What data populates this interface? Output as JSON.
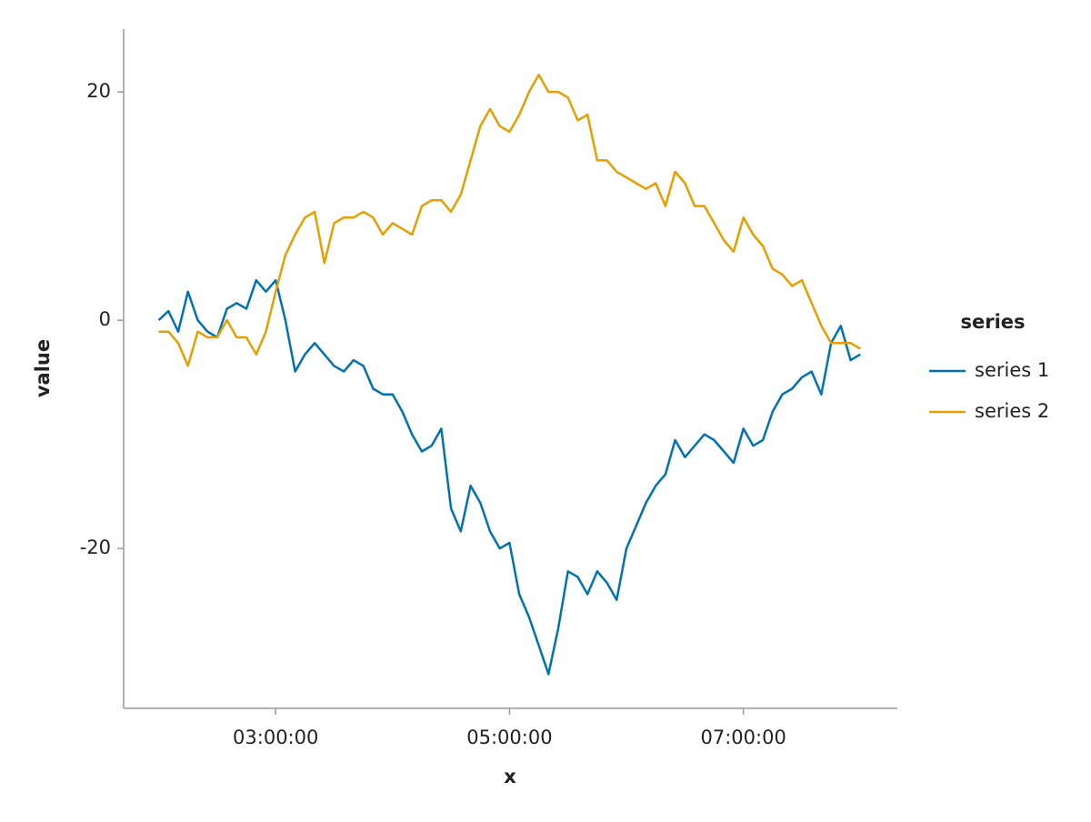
{
  "chart_data": {
    "type": "line",
    "xlabel": "x",
    "ylabel": "value",
    "x": [
      "02:00:00",
      "02:05:00",
      "02:10:00",
      "02:15:00",
      "02:20:00",
      "02:25:00",
      "02:30:00",
      "02:35:00",
      "02:40:00",
      "02:45:00",
      "02:50:00",
      "02:55:00",
      "03:00:00",
      "03:05:00",
      "03:10:00",
      "03:15:00",
      "03:20:00",
      "03:25:00",
      "03:30:00",
      "03:35:00",
      "03:40:00",
      "03:45:00",
      "03:50:00",
      "03:55:00",
      "04:00:00",
      "04:05:00",
      "04:10:00",
      "04:15:00",
      "04:20:00",
      "04:25:00",
      "04:30:00",
      "04:35:00",
      "04:40:00",
      "04:45:00",
      "04:50:00",
      "04:55:00",
      "05:00:00",
      "05:05:00",
      "05:10:00",
      "05:15:00",
      "05:20:00",
      "05:25:00",
      "05:30:00",
      "05:35:00",
      "05:40:00",
      "05:45:00",
      "05:50:00",
      "05:55:00",
      "06:00:00",
      "06:05:00",
      "06:10:00",
      "06:15:00",
      "06:20:00",
      "06:25:00",
      "06:30:00",
      "06:35:00",
      "06:40:00",
      "06:45:00",
      "06:50:00",
      "06:55:00",
      "07:00:00",
      "07:05:00",
      "07:10:00",
      "07:15:00",
      "07:20:00",
      "07:25:00",
      "07:30:00",
      "07:35:00",
      "07:40:00",
      "07:45:00",
      "07:50:00",
      "07:55:00",
      "08:00:00"
    ],
    "series": [
      {
        "name": "series 1",
        "color": "#0072b2",
        "values": [
          0,
          0.8,
          -1,
          2.5,
          0,
          -1,
          -1.5,
          1,
          1.5,
          1,
          3.5,
          2.5,
          3.5,
          0,
          -4.5,
          -3,
          -2,
          -3,
          -4,
          -4.5,
          -3.5,
          -4,
          -6,
          -6.5,
          -6.5,
          -8,
          -10,
          -11.5,
          -11,
          -9.5,
          -16.5,
          -18.5,
          -14.5,
          -16,
          -18.5,
          -20,
          -19.5,
          -24,
          -26,
          -28.5,
          -31,
          -27,
          -22,
          -22.5,
          -24,
          -22,
          -23,
          -24.5,
          -20,
          -18,
          -16,
          -14.5,
          -13.5,
          -10.5,
          -12,
          -11,
          -10,
          -10.5,
          -11.5,
          -12.5,
          -9.5,
          -11,
          -10.5,
          -8,
          -6.5,
          -6,
          -5,
          -4.5,
          -6.5,
          -2,
          -0.5,
          -3.5,
          -3
        ]
      },
      {
        "name": "series 2",
        "color": "#e69f00",
        "values": [
          -1,
          -1,
          -2,
          -4,
          -1,
          -1.5,
          -1.5,
          0,
          -1.5,
          -1.5,
          -3,
          -1,
          2.5,
          5.7,
          7.5,
          9,
          9.5,
          5,
          8.5,
          9,
          9,
          9.5,
          9,
          7.5,
          8.5,
          8,
          7.5,
          10,
          10.5,
          10.5,
          9.5,
          11,
          14,
          17,
          18.5,
          17,
          16.5,
          18,
          20,
          21.5,
          20,
          20,
          19.5,
          17.5,
          18,
          14,
          14,
          13,
          12.5,
          12,
          11.5,
          12,
          10,
          13,
          12,
          10,
          10,
          8.5,
          7,
          6,
          9,
          7.5,
          6.5,
          4.5,
          4,
          3,
          3.5,
          1.5,
          -0.5,
          -2,
          -2,
          -2,
          -2.5
        ]
      }
    ],
    "xlim": [
      "01:42:00",
      "08:19:00"
    ],
    "xticks": [
      "03:00:00",
      "05:00:00",
      "07:00:00"
    ],
    "ylim": [
      -34,
      25.5
    ],
    "yticks": [
      -20,
      0,
      20
    ],
    "legend_title": "series",
    "legend": "right",
    "grid": false
  }
}
